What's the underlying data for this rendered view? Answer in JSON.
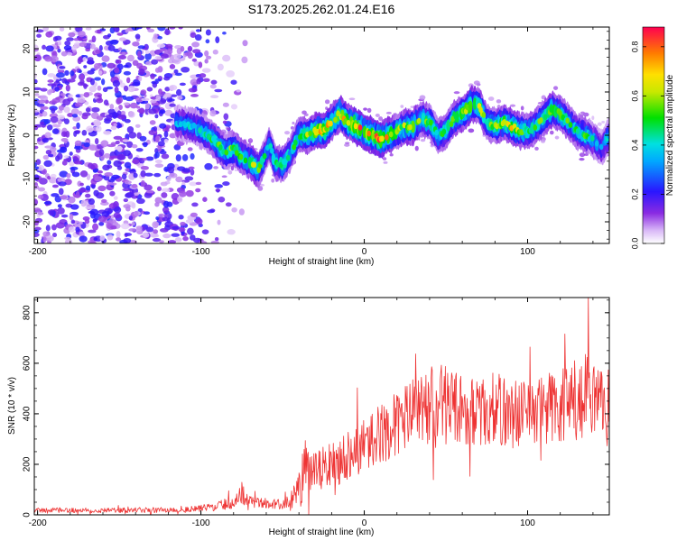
{
  "title": "S173.2025.262.01.24.E16",
  "chart_data": [
    {
      "type": "heatmap",
      "xlabel": "Height of straight line (km)",
      "ylabel": "Frequency (Hz)",
      "xlim": [
        -202,
        150
      ],
      "ylim": [
        -25,
        25
      ],
      "x_ticks": [
        -200,
        -100,
        0,
        100
      ],
      "y_ticks": [
        -20,
        -10,
        0,
        10,
        20
      ],
      "colorbar": {
        "label": "Normalized spectral amplitude",
        "range": [
          0.0,
          0.88
        ],
        "ticks": [
          0.0,
          0.2,
          0.4,
          0.6,
          0.8
        ]
      },
      "ridge": {
        "x": [
          -115,
          -105,
          -95,
          -90,
          -85,
          -80,
          -75,
          -70,
          -65,
          -62,
          -58,
          -55,
          -50,
          -45,
          -40,
          -35,
          -30,
          -25,
          -20,
          -15,
          -10,
          -5,
          0,
          5,
          10,
          15,
          20,
          25,
          30,
          35,
          40,
          45,
          50,
          55,
          60,
          65,
          70,
          75,
          80,
          85,
          90,
          95,
          100,
          105,
          110,
          115,
          120,
          125,
          130,
          135,
          140,
          145,
          150
        ],
        "freq_hz": [
          3,
          2,
          0,
          -2,
          -4,
          -3,
          -5,
          -6,
          -8,
          -6,
          -2,
          -6,
          -7,
          -4,
          0,
          0,
          1,
          1,
          3,
          5,
          3,
          2,
          1,
          0,
          -1,
          0,
          1,
          2,
          2,
          4,
          3,
          0,
          1,
          4,
          5,
          7,
          7,
          3,
          2,
          3,
          2,
          1,
          1,
          2,
          4,
          6,
          5,
          3,
          1,
          0,
          -1,
          -3,
          0
        ],
        "peak_amplitude": [
          0.35,
          0.4,
          0.45,
          0.5,
          0.5,
          0.55,
          0.5,
          0.55,
          0.6,
          0.45,
          0.4,
          0.5,
          0.5,
          0.45,
          0.5,
          0.55,
          0.7,
          0.7,
          0.65,
          0.7,
          0.65,
          0.8,
          0.75,
          0.7,
          0.8,
          0.7,
          0.55,
          0.6,
          0.65,
          0.5,
          0.55,
          0.45,
          0.5,
          0.55,
          0.6,
          0.65,
          0.6,
          0.5,
          0.55,
          0.6,
          0.65,
          0.55,
          0.5,
          0.5,
          0.55,
          0.6,
          0.55,
          0.5,
          0.45,
          0.5,
          0.4,
          0.35,
          0.4
        ]
      },
      "noise_region_x": [
        -202,
        -95
      ]
    },
    {
      "type": "line",
      "xlabel": "Height of straight line (km)",
      "ylabel": "SNR (10 * v/v)",
      "xlim": [
        -202,
        150
      ],
      "ylim": [
        0,
        860
      ],
      "x_ticks": [
        -200,
        -100,
        0,
        100
      ],
      "y_ticks": [
        0,
        200,
        400,
        600,
        800
      ],
      "color": "#ee3333",
      "envelope": {
        "x": [
          -202,
          -150,
          -110,
          -100,
          -90,
          -80,
          -75,
          -70,
          -60,
          -50,
          -45,
          -40,
          -38,
          -35,
          -30,
          -25,
          -20,
          -15,
          -10,
          -5,
          0,
          5,
          10,
          15,
          20,
          25,
          30,
          35,
          40,
          45,
          50,
          55,
          60,
          65,
          70,
          75,
          80,
          90,
          100,
          110,
          120,
          130,
          135,
          140,
          145,
          150
        ],
        "mean": [
          18,
          18,
          20,
          25,
          35,
          50,
          80,
          60,
          45,
          40,
          55,
          90,
          200,
          160,
          170,
          180,
          210,
          220,
          240,
          260,
          280,
          300,
          320,
          340,
          360,
          380,
          400,
          410,
          420,
          430,
          440,
          430,
          420,
          410,
          400,
          410,
          420,
          400,
          410,
          420,
          430,
          440,
          440,
          430,
          420,
          430
        ],
        "spread": [
          10,
          10,
          12,
          14,
          18,
          25,
          40,
          30,
          20,
          20,
          40,
          80,
          180,
          90,
          90,
          90,
          100,
          100,
          100,
          110,
          110,
          110,
          120,
          120,
          130,
          140,
          150,
          160,
          170,
          170,
          160,
          150,
          140,
          140,
          130,
          140,
          150,
          140,
          140,
          150,
          160,
          180,
          200,
          190,
          170,
          150
        ]
      }
    }
  ]
}
